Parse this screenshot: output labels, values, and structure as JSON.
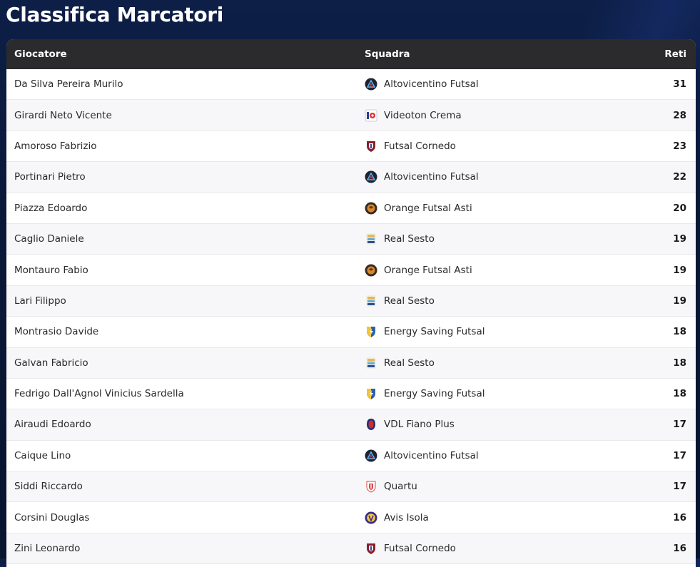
{
  "page": {
    "title": "Classifica Marcatori"
  },
  "table": {
    "headers": {
      "player": "Giocatore",
      "team": "Squadra",
      "goals": "Reti"
    },
    "rows": [
      {
        "player": "Da Silva Pereira Murilo",
        "team": "Altovicentino Futsal",
        "goals": "31",
        "logo": "altovicentino-logo-icon"
      },
      {
        "player": "Girardi Neto Vicente",
        "team": "Videoton Crema",
        "goals": "28",
        "logo": "videoton-logo-icon"
      },
      {
        "player": "Amoroso Fabrizio",
        "team": "Futsal Cornedo",
        "goals": "23",
        "logo": "cornedo-logo-icon"
      },
      {
        "player": "Portinari Pietro",
        "team": "Altovicentino Futsal",
        "goals": "22",
        "logo": "altovicentino-logo-icon"
      },
      {
        "player": "Piazza Edoardo",
        "team": "Orange Futsal Asti",
        "goals": "20",
        "logo": "orange-asti-logo-icon"
      },
      {
        "player": "Caglio Daniele",
        "team": "Real Sesto",
        "goals": "19",
        "logo": "real-sesto-logo-icon"
      },
      {
        "player": "Montauro Fabio",
        "team": "Orange Futsal Asti",
        "goals": "19",
        "logo": "orange-asti-logo-icon"
      },
      {
        "player": "Lari Filippo",
        "team": "Real Sesto",
        "goals": "19",
        "logo": "real-sesto-logo-icon"
      },
      {
        "player": "Montrasio Davide",
        "team": "Energy Saving Futsal",
        "goals": "18",
        "logo": "energy-saving-logo-icon"
      },
      {
        "player": "Galvan Fabricio",
        "team": "Real Sesto",
        "goals": "18",
        "logo": "real-sesto-logo-icon"
      },
      {
        "player": "Fedrigo Dall'Agnol Vinicius Sardella",
        "team": "Energy Saving Futsal",
        "goals": "18",
        "logo": "energy-saving-logo-icon"
      },
      {
        "player": "Airaudi Edoardo",
        "team": "VDL Fiano Plus",
        "goals": "17",
        "logo": "fiano-logo-icon"
      },
      {
        "player": "Caique Lino",
        "team": "Altovicentino Futsal",
        "goals": "17",
        "logo": "altovicentino-logo-icon"
      },
      {
        "player": "Siddi Riccardo",
        "team": "Quartu",
        "goals": "17",
        "logo": "quartu-logo-icon"
      },
      {
        "player": "Corsini Douglas",
        "team": "Avis Isola",
        "goals": "16",
        "logo": "avis-isola-logo-icon"
      },
      {
        "player": "Zini Leonardo",
        "team": "Futsal Cornedo",
        "goals": "16",
        "logo": "cornedo-logo-icon"
      }
    ]
  }
}
